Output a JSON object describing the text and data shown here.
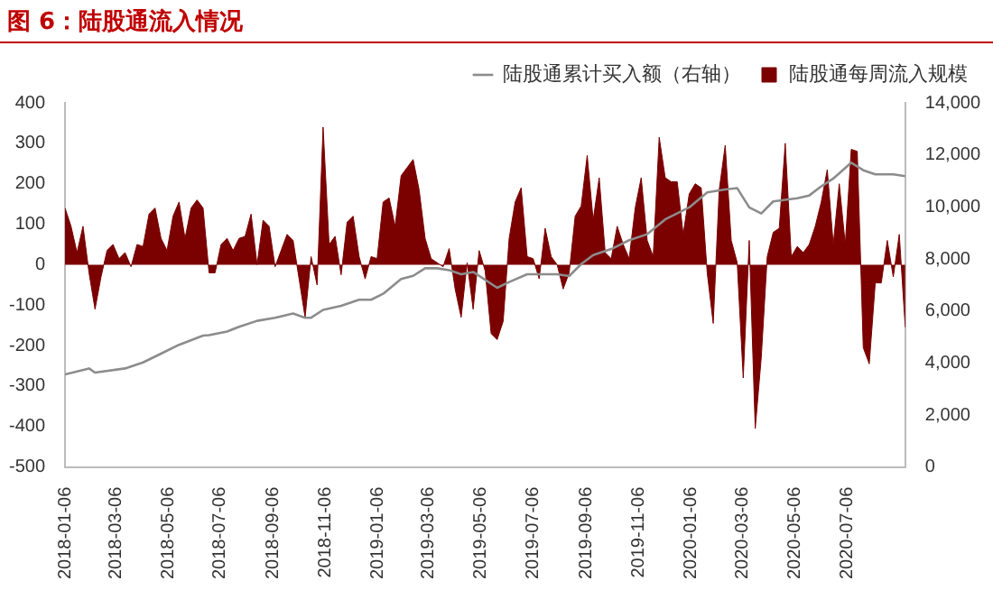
{
  "chart_data": {
    "type": "area",
    "title": "图 6：陆股通流入情况",
    "x": [
      "2018-01-06",
      "2018-01-13",
      "2018-01-20",
      "2018-01-27",
      "2018-02-03",
      "2018-02-10",
      "2018-02-17",
      "2018-02-24",
      "2018-03-03",
      "2018-03-10",
      "2018-03-17",
      "2018-03-24",
      "2018-03-31",
      "2018-04-07",
      "2018-04-14",
      "2018-04-21",
      "2018-04-28",
      "2018-05-05",
      "2018-05-12",
      "2018-05-19",
      "2018-05-26",
      "2018-06-02",
      "2018-06-09",
      "2018-06-16",
      "2018-06-23",
      "2018-06-30",
      "2018-07-07",
      "2018-07-14",
      "2018-07-21",
      "2018-07-28",
      "2018-08-04",
      "2018-08-11",
      "2018-08-18",
      "2018-08-25",
      "2018-09-01",
      "2018-09-08",
      "2018-09-15",
      "2018-09-22",
      "2018-09-29",
      "2018-10-06",
      "2018-10-13",
      "2018-10-20",
      "2018-10-27",
      "2018-11-03",
      "2018-11-10",
      "2018-11-17",
      "2018-11-24",
      "2018-12-01",
      "2018-12-08",
      "2018-12-15",
      "2018-12-22",
      "2018-12-29",
      "2019-01-05",
      "2019-01-12",
      "2019-01-19",
      "2019-01-26",
      "2019-02-02",
      "2019-02-09",
      "2019-02-16",
      "2019-02-23",
      "2019-03-02",
      "2019-03-09",
      "2019-03-16",
      "2019-03-23",
      "2019-03-30",
      "2019-04-06",
      "2019-04-13",
      "2019-04-20",
      "2019-04-27",
      "2019-05-04",
      "2019-05-11",
      "2019-05-18",
      "2019-05-25",
      "2019-06-01",
      "2019-06-08",
      "2019-06-15",
      "2019-06-22",
      "2019-06-29",
      "2019-07-06",
      "2019-07-13",
      "2019-07-20",
      "2019-07-27",
      "2019-08-03",
      "2019-08-10",
      "2019-08-17",
      "2019-08-24",
      "2019-08-31",
      "2019-09-07",
      "2019-09-14",
      "2019-09-21",
      "2019-09-28",
      "2019-10-05",
      "2019-10-12",
      "2019-10-19",
      "2019-10-26",
      "2019-11-02",
      "2019-11-09",
      "2019-11-16",
      "2019-11-23",
      "2019-11-30",
      "2019-12-07",
      "2019-12-14",
      "2019-12-21",
      "2019-12-28",
      "2020-01-04",
      "2020-01-11",
      "2020-01-18",
      "2020-01-25",
      "2020-02-01",
      "2020-02-08",
      "2020-02-15",
      "2020-02-22",
      "2020-02-29",
      "2020-03-07",
      "2020-03-14",
      "2020-03-21",
      "2020-03-28",
      "2020-04-04",
      "2020-04-11",
      "2020-04-18",
      "2020-04-25",
      "2020-05-02",
      "2020-05-09",
      "2020-05-16",
      "2020-05-23",
      "2020-05-30",
      "2020-06-06",
      "2020-06-13",
      "2020-06-20",
      "2020-06-27",
      "2020-07-04",
      "2020-07-11",
      "2020-07-18",
      "2020-07-25",
      "2020-08-01",
      "2020-08-08",
      "2020-08-15",
      "2020-08-22",
      "2020-08-29",
      "2020-09-05",
      "2020-09-12"
    ],
    "series": [
      {
        "name": "陆股通每周流入规模",
        "type": "area",
        "color": "#7b0000",
        "values": [
          140,
          95,
          30,
          95,
          -20,
          -110,
          -30,
          35,
          50,
          15,
          30,
          -5,
          50,
          45,
          125,
          140,
          65,
          35,
          120,
          155,
          65,
          140,
          160,
          140,
          -20,
          -20,
          50,
          65,
          35,
          65,
          70,
          125,
          0,
          110,
          95,
          -5,
          35,
          75,
          60,
          -35,
          -130,
          20,
          -50,
          340,
          50,
          70,
          -25,
          105,
          120,
          20,
          -35,
          20,
          15,
          155,
          165,
          95,
          220,
          240,
          260,
          185,
          65,
          15,
          5,
          -5,
          40,
          -60,
          -130,
          5,
          -110,
          35,
          -15,
          -170,
          -185,
          -140,
          65,
          155,
          190,
          20,
          15,
          -35,
          90,
          20,
          0,
          -60,
          -20,
          120,
          145,
          270,
          110,
          215,
          30,
          15,
          95,
          50,
          15,
          140,
          215,
          60,
          20,
          315,
          215,
          205,
          205,
          75,
          175,
          200,
          190,
          -20,
          -145,
          185,
          295,
          60,
          5,
          -280,
          60,
          -405,
          -230,
          20,
          80,
          90,
          300,
          20,
          45,
          30,
          50,
          95,
          155,
          235,
          50,
          200,
          50,
          285,
          280,
          -205,
          -245,
          -45,
          -45,
          60,
          -30,
          75,
          -155
        ]
      },
      {
        "name": "陆股通累计买入额（右轴）",
        "type": "line",
        "axis": "y2",
        "color": "#8c8c8c",
        "x": [
          "2018-01-06",
          "2018-02-03",
          "2018-02-10",
          "2018-03-17",
          "2018-04-07",
          "2018-04-28",
          "2018-05-19",
          "2018-06-16",
          "2018-06-23",
          "2018-07-14",
          "2018-07-28",
          "2018-08-18",
          "2018-09-08",
          "2018-09-29",
          "2018-10-13",
          "2018-10-20",
          "2018-11-03",
          "2018-11-24",
          "2018-12-15",
          "2018-12-29",
          "2019-01-12",
          "2019-02-02",
          "2019-02-16",
          "2019-03-02",
          "2019-03-16",
          "2019-03-30",
          "2019-04-13",
          "2019-04-27",
          "2019-05-25",
          "2019-06-08",
          "2019-06-29",
          "2019-08-03",
          "2019-08-17",
          "2019-08-31",
          "2019-09-14",
          "2019-10-05",
          "2019-10-26",
          "2019-11-16",
          "2019-12-07",
          "2020-01-04",
          "2020-01-25",
          "2020-02-15",
          "2020-02-29",
          "2020-03-14",
          "2020-03-28",
          "2020-04-11",
          "2020-05-09",
          "2020-05-23",
          "2020-06-06",
          "2020-06-20",
          "2020-07-11",
          "2020-07-25",
          "2020-08-08",
          "2020-08-29",
          "2020-09-12"
        ],
        "values": [
          3560,
          3790,
          3630,
          3790,
          4020,
          4360,
          4700,
          5050,
          5070,
          5210,
          5390,
          5620,
          5740,
          5900,
          5740,
          5740,
          6040,
          6200,
          6430,
          6430,
          6660,
          7230,
          7350,
          7640,
          7640,
          7570,
          7410,
          7500,
          6890,
          7110,
          7410,
          7410,
          7340,
          7800,
          8150,
          8380,
          8720,
          8950,
          9520,
          9980,
          10560,
          10670,
          10720,
          9980,
          9750,
          10210,
          10330,
          10440,
          10790,
          11090,
          11700,
          11410,
          11250,
          11250,
          11180
        ]
      }
    ],
    "xlim": [
      "2018-01-06",
      "2020-09-12"
    ],
    "xticks": [
      "2018-01-06",
      "2018-03-06",
      "2018-05-06",
      "2018-07-06",
      "2018-09-06",
      "2018-11-06",
      "2019-01-06",
      "2019-03-06",
      "2019-05-06",
      "2019-07-06",
      "2019-09-06",
      "2019-11-06",
      "2020-01-06",
      "2020-03-06",
      "2020-05-06",
      "2020-07-06"
    ],
    "ylim": [
      -500,
      400
    ],
    "yticks": [
      -500,
      -400,
      -300,
      -200,
      -100,
      0,
      100,
      200,
      300,
      400
    ],
    "y2lim": [
      0,
      14000
    ],
    "y2ticks": [
      0,
      {
        "value": 2000,
        "label": "2,000"
      },
      {
        "value": 4000,
        "label": "4,000"
      },
      {
        "value": 6000,
        "label": "6,000"
      },
      {
        "value": 8000,
        "label": "8,000"
      },
      {
        "value": 10000,
        "label": "10,000"
      },
      {
        "value": 12000,
        "label": "12,000"
      },
      {
        "value": 14000,
        "label": "14,000"
      }
    ],
    "grid": false,
    "legend": "top"
  }
}
